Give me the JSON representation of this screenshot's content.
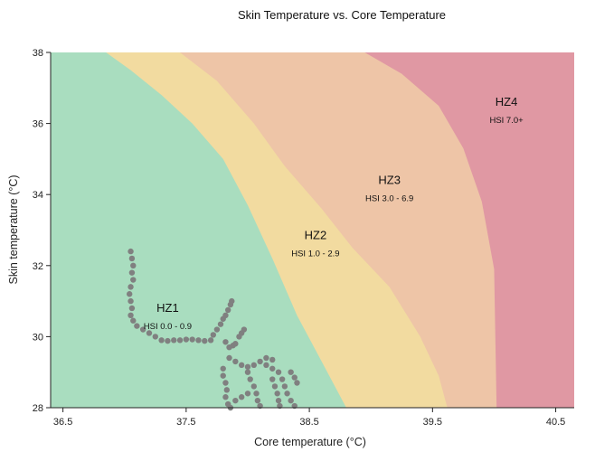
{
  "chart_data": {
    "type": "area",
    "title": "Skin Temperature vs. Core Temperature",
    "xlabel": "Core temperature (°C)",
    "ylabel": "Skin temperature (°C)",
    "xlim": [
      36.4,
      40.65
    ],
    "ylim": [
      28,
      38
    ],
    "xticks": [
      "36.5",
      "37.5",
      "38.5",
      "39.5",
      "40.5"
    ],
    "yticks": [
      "28",
      "30",
      "32",
      "34",
      "36",
      "38"
    ],
    "grid": false,
    "zones": [
      {
        "name": "HZ1",
        "range": "HSI 0.0 - 0.9",
        "color": "#a9ddbf",
        "label_at": [
          37.35,
          30.7
        ],
        "boundary": [
          [
            36.85,
            38
          ],
          [
            37.05,
            37.5
          ],
          [
            37.3,
            36.8
          ],
          [
            37.55,
            36.0
          ],
          [
            37.8,
            35.0
          ],
          [
            38.0,
            33.7
          ],
          [
            38.2,
            32.2
          ],
          [
            38.4,
            30.6
          ],
          [
            38.6,
            29.3
          ],
          [
            38.8,
            28.0
          ]
        ]
      },
      {
        "name": "HZ2",
        "range": "HSI 1.0 - 2.9",
        "color": "#f2dba0",
        "label_at": [
          38.55,
          32.75
        ],
        "boundary": [
          [
            37.45,
            38
          ],
          [
            37.75,
            37.2
          ],
          [
            38.05,
            36.0
          ],
          [
            38.3,
            34.8
          ],
          [
            38.6,
            33.6
          ],
          [
            38.85,
            32.5
          ],
          [
            39.15,
            31.4
          ],
          [
            39.4,
            30.0
          ],
          [
            39.55,
            28.9
          ],
          [
            39.62,
            28.0
          ]
        ]
      },
      {
        "name": "HZ3",
        "range": "HSI 3.0 - 6.9",
        "color": "#eec5a7",
        "label_at": [
          39.15,
          34.3
        ],
        "boundary": [
          [
            38.95,
            38
          ],
          [
            39.25,
            37.4
          ],
          [
            39.55,
            36.5
          ],
          [
            39.75,
            35.3
          ],
          [
            39.9,
            33.8
          ],
          [
            40.0,
            31.9
          ],
          [
            40.02,
            28.0
          ]
        ]
      },
      {
        "name": "HZ4",
        "range": "HSI 7.0+",
        "color": "#e098a3",
        "label_at": [
          40.1,
          36.5
        ]
      }
    ],
    "series": [
      {
        "type": "scatter",
        "color": "#808080",
        "points": [
          [
            37.05,
            32.4
          ],
          [
            37.06,
            32.2
          ],
          [
            37.07,
            32.0
          ],
          [
            37.06,
            31.8
          ],
          [
            37.07,
            31.6
          ],
          [
            37.05,
            31.4
          ],
          [
            37.04,
            31.2
          ],
          [
            37.05,
            31.0
          ],
          [
            37.06,
            30.8
          ],
          [
            37.05,
            30.6
          ],
          [
            37.07,
            30.45
          ],
          [
            37.1,
            30.3
          ],
          [
            37.15,
            30.2
          ],
          [
            37.2,
            30.1
          ],
          [
            37.25,
            30.0
          ],
          [
            37.3,
            29.9
          ],
          [
            37.35,
            29.88
          ],
          [
            37.4,
            29.9
          ],
          [
            37.45,
            29.9
          ],
          [
            37.5,
            29.92
          ],
          [
            37.55,
            29.92
          ],
          [
            37.6,
            29.9
          ],
          [
            37.65,
            29.88
          ],
          [
            37.7,
            29.9
          ],
          [
            37.72,
            30.05
          ],
          [
            37.75,
            30.2
          ],
          [
            37.78,
            30.35
          ],
          [
            37.8,
            30.5
          ],
          [
            37.82,
            30.6
          ],
          [
            37.84,
            30.75
          ],
          [
            37.86,
            30.9
          ],
          [
            37.87,
            31.0
          ],
          [
            37.82,
            29.85
          ],
          [
            37.85,
            29.7
          ],
          [
            37.88,
            29.75
          ],
          [
            37.9,
            29.8
          ],
          [
            37.93,
            30.0
          ],
          [
            37.95,
            30.1
          ],
          [
            37.97,
            30.2
          ],
          [
            37.85,
            29.4
          ],
          [
            37.9,
            29.3
          ],
          [
            37.95,
            29.2
          ],
          [
            38.0,
            29.15
          ],
          [
            38.05,
            29.2
          ],
          [
            38.1,
            29.3
          ],
          [
            38.15,
            29.4
          ],
          [
            38.2,
            29.35
          ],
          [
            37.8,
            29.1
          ],
          [
            37.8,
            28.9
          ],
          [
            37.82,
            28.7
          ],
          [
            37.83,
            28.5
          ],
          [
            37.82,
            28.3
          ],
          [
            37.84,
            28.1
          ],
          [
            37.86,
            28.0
          ],
          [
            38.0,
            29.0
          ],
          [
            38.02,
            28.8
          ],
          [
            38.05,
            28.6
          ],
          [
            38.07,
            28.4
          ],
          [
            38.08,
            28.2
          ],
          [
            38.1,
            28.05
          ],
          [
            38.15,
            29.2
          ],
          [
            38.2,
            29.1
          ],
          [
            38.25,
            29.0
          ],
          [
            38.28,
            28.8
          ],
          [
            38.3,
            28.6
          ],
          [
            38.32,
            28.4
          ],
          [
            38.35,
            28.2
          ],
          [
            38.38,
            28.05
          ],
          [
            38.2,
            28.8
          ],
          [
            38.22,
            28.6
          ],
          [
            38.24,
            28.4
          ],
          [
            38.25,
            28.2
          ],
          [
            38.26,
            28.05
          ],
          [
            38.35,
            29.0
          ],
          [
            38.38,
            28.85
          ],
          [
            38.4,
            28.7
          ],
          [
            37.9,
            28.2
          ],
          [
            37.95,
            28.3
          ],
          [
            38.0,
            28.4
          ]
        ]
      }
    ]
  }
}
